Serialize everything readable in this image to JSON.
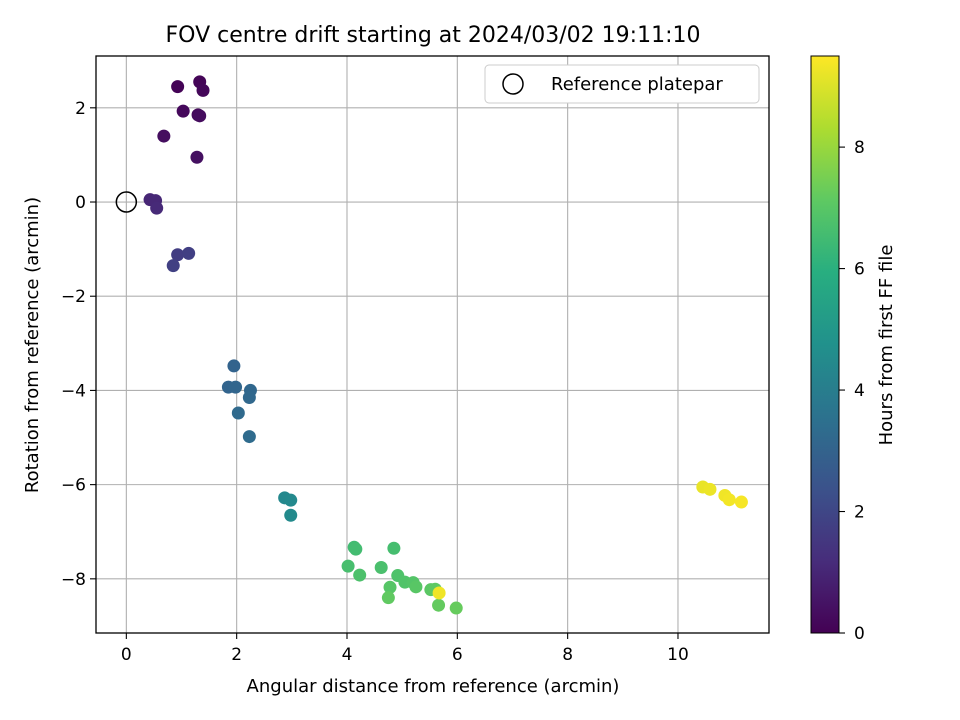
{
  "chart_data": {
    "type": "scatter",
    "title": "FOV centre drift starting at 2024/03/02 19:11:10",
    "xlabel": "Angular distance from reference (arcmin)",
    "ylabel": "Rotation from reference (arcmin)",
    "xlim": [
      -0.55,
      11.65
    ],
    "ylim": [
      -9.15,
      3.1
    ],
    "x_ticks": [
      0,
      2,
      4,
      6,
      8,
      10
    ],
    "y_ticks": [
      -8,
      -6,
      -4,
      -2,
      0,
      2
    ],
    "x_tick_labels": [
      "0",
      "2",
      "4",
      "6",
      "8",
      "10"
    ],
    "y_tick_labels": [
      "−8",
      "−6",
      "−4",
      "−2",
      "0",
      "2"
    ],
    "grid": true,
    "legend": {
      "position": "top-right",
      "entries": [
        "Reference platepar"
      ]
    },
    "reference_point": {
      "x": 0,
      "y": 0,
      "marker": "open-circle"
    },
    "colorbar": {
      "label": "Hours from first FF file",
      "colormap": "viridis",
      "range": [
        0,
        9.5
      ],
      "ticks": [
        0,
        2,
        4,
        6,
        8
      ],
      "tick_labels": [
        "0",
        "2",
        "4",
        "6",
        "8"
      ]
    },
    "points": [
      {
        "x": 0.93,
        "y": 2.45,
        "c": 0.05
      },
      {
        "x": 1.33,
        "y": 2.55,
        "c": 0.1
      },
      {
        "x": 1.39,
        "y": 2.37,
        "c": 0.15
      },
      {
        "x": 1.03,
        "y": 1.93,
        "c": 0.2
      },
      {
        "x": 1.3,
        "y": 1.85,
        "c": 0.25
      },
      {
        "x": 1.33,
        "y": 1.83,
        "c": 0.3
      },
      {
        "x": 0.68,
        "y": 1.4,
        "c": 0.35
      },
      {
        "x": 1.28,
        "y": 0.95,
        "c": 0.4
      },
      {
        "x": 0.43,
        "y": 0.05,
        "c": 1.0
      },
      {
        "x": 0.53,
        "y": 0.03,
        "c": 1.05
      },
      {
        "x": 0.55,
        "y": -0.13,
        "c": 1.1
      },
      {
        "x": 0.93,
        "y": -1.12,
        "c": 1.7
      },
      {
        "x": 1.13,
        "y": -1.09,
        "c": 1.75
      },
      {
        "x": 0.85,
        "y": -1.35,
        "c": 1.8
      },
      {
        "x": 1.95,
        "y": -3.48,
        "c": 3.0
      },
      {
        "x": 1.85,
        "y": -3.93,
        "c": 3.05
      },
      {
        "x": 1.98,
        "y": -3.93,
        "c": 3.1
      },
      {
        "x": 2.25,
        "y": -4.0,
        "c": 3.15
      },
      {
        "x": 2.23,
        "y": -4.15,
        "c": 3.2
      },
      {
        "x": 2.03,
        "y": -4.48,
        "c": 3.25
      },
      {
        "x": 2.23,
        "y": -4.98,
        "c": 3.3
      },
      {
        "x": 2.87,
        "y": -6.28,
        "c": 4.4
      },
      {
        "x": 2.98,
        "y": -6.33,
        "c": 4.45
      },
      {
        "x": 2.98,
        "y": -6.65,
        "c": 4.5
      },
      {
        "x": 4.13,
        "y": -7.33,
        "c": 6.5
      },
      {
        "x": 4.16,
        "y": -7.37,
        "c": 6.55
      },
      {
        "x": 4.85,
        "y": -7.35,
        "c": 6.6
      },
      {
        "x": 4.02,
        "y": -7.73,
        "c": 6.65
      },
      {
        "x": 4.62,
        "y": -7.76,
        "c": 6.7
      },
      {
        "x": 4.23,
        "y": -7.92,
        "c": 6.75
      },
      {
        "x": 4.92,
        "y": -7.93,
        "c": 6.8
      },
      {
        "x": 5.05,
        "y": -8.07,
        "c": 6.85
      },
      {
        "x": 5.2,
        "y": -8.08,
        "c": 6.9
      },
      {
        "x": 4.78,
        "y": -8.18,
        "c": 6.95
      },
      {
        "x": 5.25,
        "y": -8.17,
        "c": 7.0
      },
      {
        "x": 5.52,
        "y": -8.23,
        "c": 7.05
      },
      {
        "x": 5.6,
        "y": -8.22,
        "c": 7.1
      },
      {
        "x": 4.75,
        "y": -8.4,
        "c": 7.15
      },
      {
        "x": 5.66,
        "y": -8.56,
        "c": 7.2
      },
      {
        "x": 5.98,
        "y": -8.62,
        "c": 7.25
      },
      {
        "x": 5.67,
        "y": -8.3,
        "c": 9.3
      },
      {
        "x": 10.45,
        "y": -6.05,
        "c": 9.2
      },
      {
        "x": 10.58,
        "y": -6.1,
        "c": 9.25
      },
      {
        "x": 10.85,
        "y": -6.23,
        "c": 9.3
      },
      {
        "x": 10.93,
        "y": -6.32,
        "c": 9.35
      },
      {
        "x": 11.15,
        "y": -6.37,
        "c": 9.4
      }
    ]
  }
}
